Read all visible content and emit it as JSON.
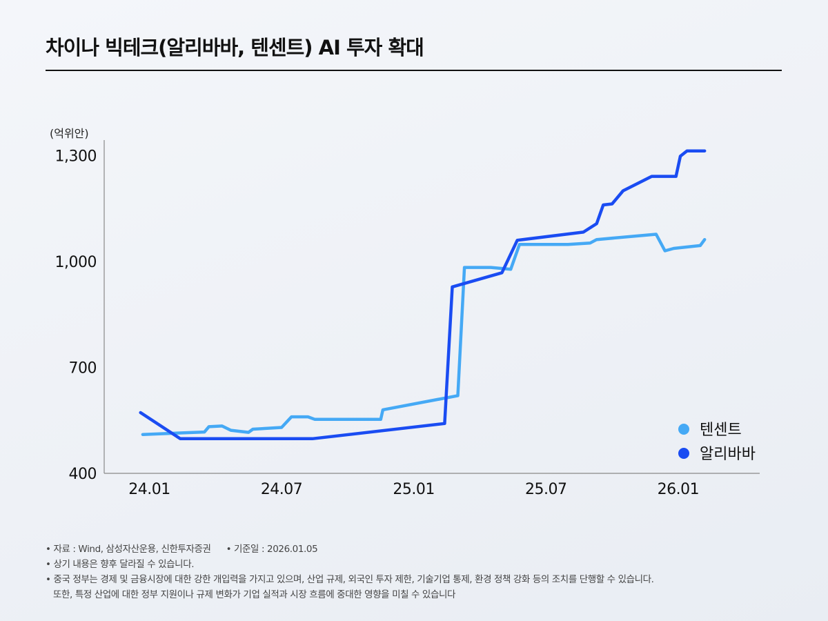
{
  "title": "차이나 빅테크(알리바바, 텐센트) AI 투자 확대",
  "chart_data": {
    "type": "line",
    "unit_label": "(억위안)",
    "y_ticks": [
      400,
      700,
      1000,
      1300
    ],
    "y_tick_labels": [
      "400",
      "700",
      "1,000",
      "1,300"
    ],
    "ylim": [
      400,
      1330
    ],
    "x_ticks": [
      0,
      6,
      12,
      18,
      24
    ],
    "x_tick_labels": [
      "24.01",
      "24.07",
      "25.01",
      "25.07",
      "26.01"
    ],
    "xlim": [
      -2.05,
      27.7
    ],
    "colors": {
      "tencent": "#45a9f5",
      "alibaba": "#1a4cf2"
    },
    "series": [
      {
        "name": "텐센트",
        "key": "tencent",
        "points": [
          [
            -0.3,
            510
          ],
          [
            2.5,
            517
          ],
          [
            2.7,
            532
          ],
          [
            3.3,
            534
          ],
          [
            3.7,
            522
          ],
          [
            4.5,
            516
          ],
          [
            4.7,
            525
          ],
          [
            6.0,
            530
          ],
          [
            6.45,
            560
          ],
          [
            7.2,
            560
          ],
          [
            7.5,
            553
          ],
          [
            10.5,
            553
          ],
          [
            10.6,
            580
          ],
          [
            14.0,
            620
          ],
          [
            14.3,
            983
          ],
          [
            15.5,
            983
          ],
          [
            16.4,
            978
          ],
          [
            16.8,
            1048
          ],
          [
            19.0,
            1048
          ],
          [
            20.0,
            1052
          ],
          [
            20.3,
            1062
          ],
          [
            23.0,
            1077
          ],
          [
            23.4,
            1030
          ],
          [
            23.8,
            1037
          ],
          [
            25.0,
            1045
          ],
          [
            25.2,
            1062
          ]
        ]
      },
      {
        "name": "알리바바",
        "key": "alibaba",
        "points": [
          [
            -0.4,
            572
          ],
          [
            1.4,
            498
          ],
          [
            7.4,
            498
          ],
          [
            13.4,
            541
          ],
          [
            13.75,
            928
          ],
          [
            16.0,
            968
          ],
          [
            16.7,
            1060
          ],
          [
            19.7,
            1083
          ],
          [
            20.3,
            1107
          ],
          [
            20.6,
            1160
          ],
          [
            21.0,
            1163
          ],
          [
            21.5,
            1200
          ],
          [
            22.8,
            1241
          ],
          [
            23.9,
            1241
          ],
          [
            24.1,
            1298
          ],
          [
            24.4,
            1313
          ],
          [
            25.2,
            1313
          ]
        ]
      }
    ]
  },
  "notes": {
    "source": "• 자료 : Wind, 삼성자산운용, 신한투자증권",
    "base_date": "• 기준일 : 2026.01.05",
    "line2": "• 상기 내용은 향후 달라질 수 있습니다.",
    "line3": "• 중국 정부는 경제 및 금융시장에 대한 강한 개입력을 가지고 있으며, 산업 규제, 외국인 투자 제한, 기술기업 통제, 환경 정책 강화 등의 조치를 단행할 수 있습니다.",
    "line4": "또한, 특정 산업에 대한 정부 지원이나 규제 변화가 기업 실적과 시장 흐름에 중대한 영향을 미칠 수 있습니다"
  }
}
